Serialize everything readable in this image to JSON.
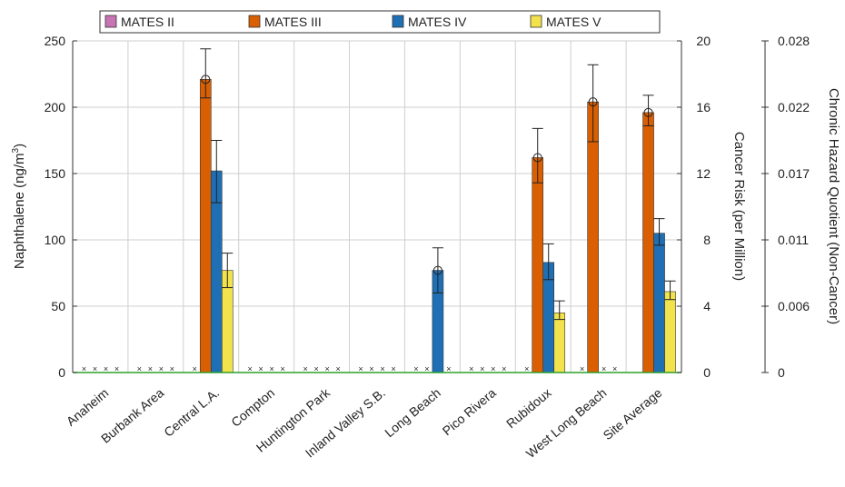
{
  "chart_data": {
    "type": "bar",
    "categories": [
      "Anaheim",
      "Burbank Area",
      "Central L.A.",
      "Compton",
      "Huntington Park",
      "Inland Valley S.B.",
      "Long Beach",
      "Pico Rivera",
      "Rubidoux",
      "West Long Beach",
      "Site Average"
    ],
    "series": [
      {
        "name": "MATES II",
        "color": "#c774b4",
        "values": [
          null,
          null,
          null,
          null,
          null,
          null,
          null,
          null,
          null,
          null,
          null
        ]
      },
      {
        "name": "MATES III",
        "color": "#d95f02",
        "values": [
          null,
          null,
          221,
          null,
          null,
          null,
          null,
          null,
          162,
          204,
          196
        ],
        "err_low": [
          null,
          null,
          207,
          null,
          null,
          null,
          null,
          null,
          143,
          174,
          186
        ],
        "err_high": [
          null,
          null,
          244,
          null,
          null,
          null,
          null,
          null,
          184,
          232,
          209
        ]
      },
      {
        "name": "MATES IV",
        "color": "#1f6fb5",
        "values": [
          null,
          null,
          152,
          null,
          null,
          null,
          77,
          null,
          83,
          null,
          105
        ],
        "err_low": [
          null,
          null,
          128,
          null,
          null,
          null,
          60,
          null,
          70,
          null,
          96
        ],
        "err_high": [
          null,
          null,
          175,
          null,
          null,
          null,
          94,
          null,
          97,
          null,
          116
        ]
      },
      {
        "name": "MATES V",
        "color": "#f2e24c",
        "values": [
          null,
          null,
          77,
          null,
          null,
          null,
          null,
          null,
          45,
          null,
          61
        ],
        "err_low": [
          null,
          null,
          64,
          null,
          null,
          null,
          null,
          null,
          40,
          null,
          55
        ],
        "err_high": [
          null,
          null,
          90,
          null,
          null,
          null,
          null,
          null,
          54,
          null,
          69
        ]
      }
    ],
    "missing_markers": [
      [
        1,
        1,
        1,
        1
      ],
      [
        1,
        1,
        1,
        1
      ],
      [
        1,
        0,
        0,
        0
      ],
      [
        1,
        1,
        1,
        1
      ],
      [
        1,
        1,
        1,
        1
      ],
      [
        1,
        1,
        1,
        1
      ],
      [
        1,
        1,
        0,
        1
      ],
      [
        1,
        1,
        1,
        1
      ],
      [
        1,
        0,
        0,
        0
      ],
      [
        1,
        0,
        1,
        1
      ],
      [
        0,
        0,
        0,
        0
      ]
    ],
    "circle_markers": [
      [
        2,
        1
      ],
      [
        6,
        2
      ],
      [
        8,
        1
      ],
      [
        9,
        1
      ],
      [
        10,
        1
      ]
    ],
    "ylabel": "Naphthalene (ng/m",
    "ylabel_sup": "3",
    "ylabel_close": ")",
    "ylim": [
      0,
      250
    ],
    "yticks": [
      "0",
      "50",
      "100",
      "150",
      "200",
      "250"
    ],
    "y2label": "Cancer Risk (per Million)",
    "y2ticks": [
      "0",
      "4",
      "8",
      "12",
      "16",
      "20"
    ],
    "y3label": "Chronic Hazard Quotient (Non-Cancer)",
    "y3ticks": [
      "0",
      "0.006",
      "0.011",
      "0.017",
      "0.022",
      "0.028"
    ],
    "grid": true,
    "legend_position": "top"
  }
}
